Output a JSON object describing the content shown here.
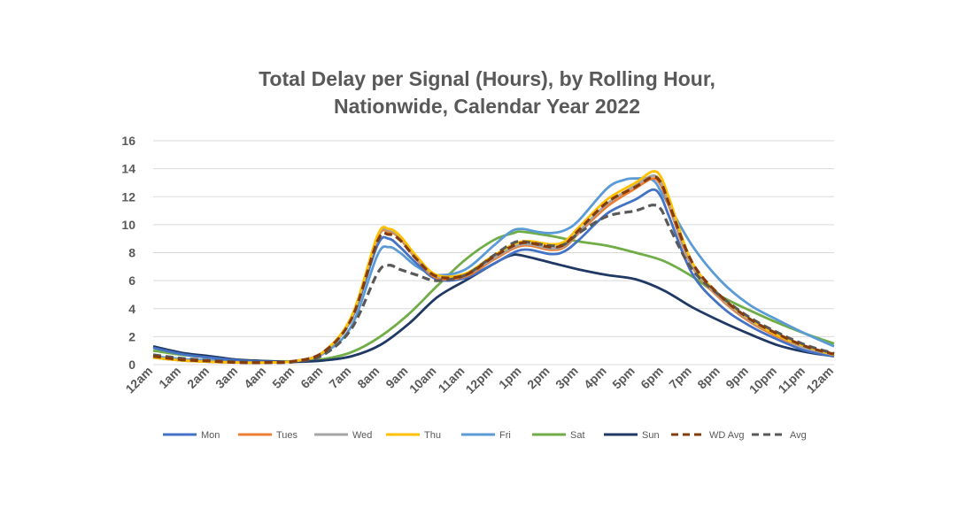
{
  "chart_data": {
    "type": "line",
    "title": "Total Delay per Signal (Hours), by Rolling Hour,",
    "subtitle": "Nationwide, Calendar Year 2022",
    "xlabel": "",
    "ylabel": "",
    "ylim": [
      0,
      16
    ],
    "yticks": [
      "0",
      "2",
      "4",
      "6",
      "8",
      "10",
      "12",
      "14",
      "16"
    ],
    "grid": true,
    "legend_position": "bottom",
    "categories": [
      "12am",
      "1am",
      "2am",
      "3am",
      "4am",
      "5am",
      "6am",
      "7am",
      "8am",
      "9am",
      "10am",
      "11am",
      "12pm",
      "1pm",
      "2pm",
      "3pm",
      "4pm",
      "5pm",
      "6pm",
      "7pm",
      "8pm",
      "9pm",
      "10pm",
      "11pm",
      "12am"
    ],
    "series": [
      {
        "name": "Mon",
        "color": "#4472C4",
        "dash": "solid",
        "values": [
          [
            0,
            1.2
          ],
          [
            1,
            0.75
          ],
          [
            2,
            0.5
          ],
          [
            3,
            0.3
          ],
          [
            4,
            0.2
          ],
          [
            5,
            0.25
          ],
          [
            6,
            0.9
          ],
          [
            7,
            3.3
          ],
          [
            7.9,
            8.5
          ],
          [
            8.3,
            9.0
          ],
          [
            8.7,
            8.4
          ],
          [
            9.3,
            7.2
          ],
          [
            10,
            6.1
          ],
          [
            11,
            6.2
          ],
          [
            12,
            7.2
          ],
          [
            13,
            8.2
          ],
          [
            14,
            7.9
          ],
          [
            14.5,
            8.1
          ],
          [
            15,
            8.9
          ],
          [
            16,
            10.8
          ],
          [
            17,
            11.8
          ],
          [
            17.6,
            12.5
          ],
          [
            17.9,
            12.0
          ],
          [
            18.2,
            10.5
          ],
          [
            19,
            6.5
          ],
          [
            20,
            4.2
          ],
          [
            21,
            2.8
          ],
          [
            22,
            1.8
          ],
          [
            23,
            1.0
          ],
          [
            24,
            0.6
          ]
        ]
      },
      {
        "name": "Tues",
        "color": "#ED7D31",
        "dash": "solid",
        "values": [
          [
            0,
            0.5
          ],
          [
            1,
            0.3
          ],
          [
            2,
            0.2
          ],
          [
            3,
            0.15
          ],
          [
            4,
            0.15
          ],
          [
            5,
            0.25
          ],
          [
            6,
            0.9
          ],
          [
            7,
            3.4
          ],
          [
            7.9,
            9.0
          ],
          [
            8.3,
            9.5
          ],
          [
            8.7,
            9.0
          ],
          [
            9.3,
            7.5
          ],
          [
            10,
            6.2
          ],
          [
            11,
            6.3
          ],
          [
            12,
            7.5
          ],
          [
            13,
            8.5
          ],
          [
            14,
            8.2
          ],
          [
            14.5,
            8.4
          ],
          [
            15,
            9.4
          ],
          [
            16,
            11.3
          ],
          [
            17,
            12.6
          ],
          [
            17.6,
            13.3
          ],
          [
            17.9,
            12.8
          ],
          [
            18.2,
            11.2
          ],
          [
            19,
            7.0
          ],
          [
            20,
            4.7
          ],
          [
            21,
            3.1
          ],
          [
            22,
            2.0
          ],
          [
            23,
            1.2
          ],
          [
            24,
            0.7
          ]
        ]
      },
      {
        "name": "Wed",
        "color": "#A5A5A5",
        "dash": "solid",
        "values": [
          [
            0,
            0.5
          ],
          [
            1,
            0.3
          ],
          [
            2,
            0.2
          ],
          [
            3,
            0.15
          ],
          [
            4,
            0.15
          ],
          [
            5,
            0.25
          ],
          [
            6,
            0.9
          ],
          [
            7,
            3.4
          ],
          [
            7.9,
            9.1
          ],
          [
            8.3,
            9.6
          ],
          [
            8.7,
            9.1
          ],
          [
            9.3,
            7.6
          ],
          [
            10,
            6.3
          ],
          [
            11,
            6.4
          ],
          [
            12,
            7.6
          ],
          [
            13,
            8.6
          ],
          [
            14,
            8.3
          ],
          [
            14.5,
            8.5
          ],
          [
            15,
            9.5
          ],
          [
            16,
            11.5
          ],
          [
            17,
            12.8
          ],
          [
            17.6,
            13.5
          ],
          [
            17.9,
            13.0
          ],
          [
            18.2,
            11.4
          ],
          [
            19,
            7.1
          ],
          [
            20,
            4.8
          ],
          [
            21,
            3.2
          ],
          [
            22,
            2.1
          ],
          [
            23,
            1.2
          ],
          [
            24,
            0.7
          ]
        ]
      },
      {
        "name": "Thu",
        "color": "#FFC000",
        "dash": "solid",
        "values": [
          [
            0,
            0.5
          ],
          [
            1,
            0.3
          ],
          [
            2,
            0.2
          ],
          [
            3,
            0.15
          ],
          [
            4,
            0.15
          ],
          [
            5,
            0.25
          ],
          [
            6,
            0.9
          ],
          [
            7,
            3.5
          ],
          [
            7.9,
            9.2
          ],
          [
            8.3,
            9.7
          ],
          [
            8.7,
            9.2
          ],
          [
            9.3,
            7.7
          ],
          [
            10,
            6.4
          ],
          [
            11,
            6.5
          ],
          [
            12,
            7.8
          ],
          [
            13,
            8.8
          ],
          [
            14,
            8.6
          ],
          [
            14.5,
            8.8
          ],
          [
            15,
            9.8
          ],
          [
            16,
            11.8
          ],
          [
            17,
            13.0
          ],
          [
            17.6,
            13.8
          ],
          [
            17.9,
            13.4
          ],
          [
            18.2,
            11.8
          ],
          [
            19,
            7.3
          ],
          [
            20,
            4.9
          ],
          [
            21,
            3.3
          ],
          [
            22,
            2.1
          ],
          [
            23,
            1.3
          ],
          [
            24,
            0.7
          ]
        ]
      },
      {
        "name": "Fri",
        "color": "#5B9BD5",
        "dash": "solid",
        "values": [
          [
            0,
            0.6
          ],
          [
            1,
            0.4
          ],
          [
            2,
            0.3
          ],
          [
            3,
            0.2
          ],
          [
            4,
            0.15
          ],
          [
            5,
            0.25
          ],
          [
            6,
            0.8
          ],
          [
            7,
            2.8
          ],
          [
            7.9,
            7.8
          ],
          [
            8.3,
            8.4
          ],
          [
            8.7,
            8.0
          ],
          [
            9.3,
            7.0
          ],
          [
            10,
            6.4
          ],
          [
            11,
            6.8
          ],
          [
            12,
            8.5
          ],
          [
            12.6,
            9.5
          ],
          [
            13,
            9.7
          ],
          [
            13.5,
            9.5
          ],
          [
            14,
            9.4
          ],
          [
            14.5,
            9.6
          ],
          [
            15,
            10.3
          ],
          [
            16,
            12.6
          ],
          [
            16.6,
            13.2
          ],
          [
            17,
            13.3
          ],
          [
            17.6,
            13.2
          ],
          [
            18,
            12.0
          ],
          [
            19,
            8.5
          ],
          [
            20,
            6.0
          ],
          [
            21,
            4.3
          ],
          [
            22,
            3.2
          ],
          [
            23,
            2.2
          ],
          [
            24,
            1.3
          ]
        ]
      },
      {
        "name": "Sat",
        "color": "#70AD47",
        "dash": "solid",
        "values": [
          [
            0,
            1.0
          ],
          [
            1,
            0.7
          ],
          [
            2,
            0.5
          ],
          [
            3,
            0.35
          ],
          [
            4,
            0.25
          ],
          [
            5,
            0.25
          ],
          [
            6,
            0.4
          ],
          [
            7,
            0.9
          ],
          [
            8,
            2.0
          ],
          [
            9,
            3.6
          ],
          [
            10,
            5.6
          ],
          [
            11,
            7.5
          ],
          [
            12,
            8.9
          ],
          [
            12.7,
            9.4
          ],
          [
            13,
            9.5
          ],
          [
            14,
            9.2
          ],
          [
            15,
            8.8
          ],
          [
            16,
            8.5
          ],
          [
            17,
            8.0
          ],
          [
            18,
            7.4
          ],
          [
            19,
            6.3
          ],
          [
            20,
            4.9
          ],
          [
            21,
            3.9
          ],
          [
            22,
            3.0
          ],
          [
            23,
            2.2
          ],
          [
            24,
            1.5
          ]
        ]
      },
      {
        "name": "Sun",
        "color": "#203864",
        "dash": "solid",
        "values": [
          [
            0,
            1.3
          ],
          [
            1,
            0.85
          ],
          [
            2,
            0.6
          ],
          [
            3,
            0.35
          ],
          [
            4,
            0.25
          ],
          [
            5,
            0.2
          ],
          [
            6,
            0.3
          ],
          [
            7,
            0.6
          ],
          [
            8,
            1.4
          ],
          [
            9,
            2.9
          ],
          [
            10,
            4.8
          ],
          [
            11,
            6.0
          ],
          [
            12,
            7.2
          ],
          [
            12.6,
            7.8
          ],
          [
            13,
            7.8
          ],
          [
            14,
            7.3
          ],
          [
            15,
            6.8
          ],
          [
            16,
            6.4
          ],
          [
            17,
            6.1
          ],
          [
            18,
            5.3
          ],
          [
            19,
            4.1
          ],
          [
            20,
            3.1
          ],
          [
            21,
            2.2
          ],
          [
            22,
            1.4
          ],
          [
            23,
            0.9
          ],
          [
            24,
            0.6
          ]
        ]
      },
      {
        "name": "WD Avg",
        "color": "#843C0C",
        "dash": "dash",
        "values": [
          [
            0,
            0.6
          ],
          [
            1,
            0.35
          ],
          [
            2,
            0.25
          ],
          [
            3,
            0.15
          ],
          [
            4,
            0.15
          ],
          [
            5,
            0.25
          ],
          [
            6,
            0.9
          ],
          [
            7,
            3.3
          ],
          [
            7.9,
            8.8
          ],
          [
            8.3,
            9.3
          ],
          [
            8.7,
            8.9
          ],
          [
            9.3,
            7.5
          ],
          [
            10,
            6.3
          ],
          [
            11,
            6.4
          ],
          [
            12,
            7.7
          ],
          [
            13,
            8.7
          ],
          [
            14,
            8.4
          ],
          [
            14.5,
            8.6
          ],
          [
            15,
            9.6
          ],
          [
            16,
            11.6
          ],
          [
            17,
            12.7
          ],
          [
            17.6,
            13.4
          ],
          [
            17.9,
            13.0
          ],
          [
            18.2,
            11.4
          ],
          [
            19,
            7.3
          ],
          [
            20,
            4.9
          ],
          [
            21,
            3.3
          ],
          [
            22,
            2.2
          ],
          [
            23,
            1.3
          ],
          [
            24,
            0.75
          ]
        ]
      },
      {
        "name": "Avg",
        "color": "#595959",
        "dash": "dash",
        "values": [
          [
            0,
            0.7
          ],
          [
            1,
            0.45
          ],
          [
            2,
            0.3
          ],
          [
            3,
            0.2
          ],
          [
            4,
            0.15
          ],
          [
            5,
            0.2
          ],
          [
            6,
            0.7
          ],
          [
            7,
            2.6
          ],
          [
            7.9,
            6.5
          ],
          [
            8.3,
            7.1
          ],
          [
            8.7,
            6.8
          ],
          [
            9.3,
            6.4
          ],
          [
            10,
            6.0
          ],
          [
            11,
            6.4
          ],
          [
            12,
            7.8
          ],
          [
            12.6,
            8.6
          ],
          [
            13,
            8.8
          ],
          [
            14,
            8.5
          ],
          [
            14.5,
            8.6
          ],
          [
            15,
            9.4
          ],
          [
            16,
            10.6
          ],
          [
            17,
            11.0
          ],
          [
            17.6,
            11.4
          ],
          [
            17.9,
            11.1
          ],
          [
            18.2,
            9.8
          ],
          [
            19,
            6.8
          ],
          [
            20,
            4.9
          ],
          [
            21,
            3.4
          ],
          [
            22,
            2.3
          ],
          [
            23,
            1.4
          ],
          [
            24,
            0.8
          ]
        ]
      }
    ]
  }
}
